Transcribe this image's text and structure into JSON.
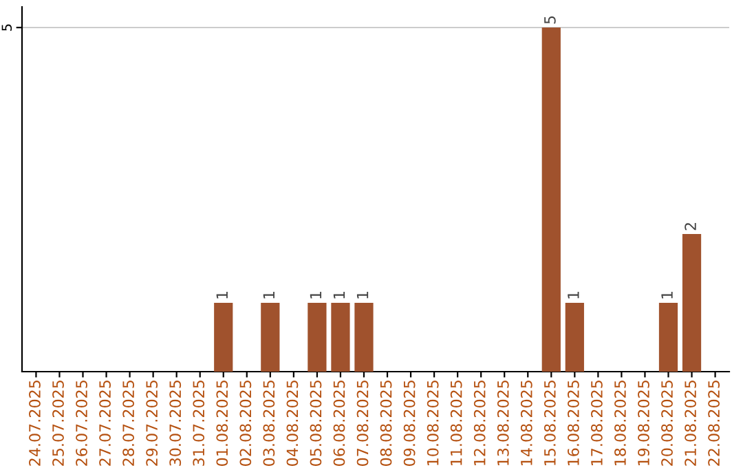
{
  "chart_data": {
    "type": "bar",
    "categories": [
      "24.07.2025",
      "25.07.2025",
      "26.07.2025",
      "27.07.2025",
      "28.07.2025",
      "29.07.2025",
      "30.07.2025",
      "31.07.2025",
      "01.08.2025",
      "02.08.2025",
      "03.08.2025",
      "04.08.2025",
      "05.08.2025",
      "06.08.2025",
      "07.08.2025",
      "08.08.2025",
      "09.08.2025",
      "10.08.2025",
      "11.08.2025",
      "12.08.2025",
      "13.08.2025",
      "14.08.2025",
      "15.08.2025",
      "16.08.2025",
      "17.08.2025",
      "18.08.2025",
      "19.08.2025",
      "20.08.2025",
      "21.08.2025",
      "22.08.2025"
    ],
    "values": [
      0,
      0,
      0,
      0,
      0,
      0,
      0,
      0,
      1,
      0,
      1,
      0,
      1,
      1,
      1,
      0,
      0,
      0,
      0,
      0,
      0,
      0,
      5,
      1,
      0,
      0,
      0,
      1,
      2,
      0
    ],
    "value_labels": [
      null,
      null,
      null,
      null,
      null,
      null,
      null,
      null,
      "1",
      null,
      "1",
      null,
      "1",
      "1",
      "1",
      null,
      null,
      null,
      null,
      null,
      null,
      null,
      "5",
      "1",
      null,
      null,
      null,
      "1",
      "2",
      null
    ],
    "color": "#a0522d",
    "ylim": [
      0,
      5.3
    ],
    "yticks": [
      5
    ],
    "grid": "y"
  }
}
